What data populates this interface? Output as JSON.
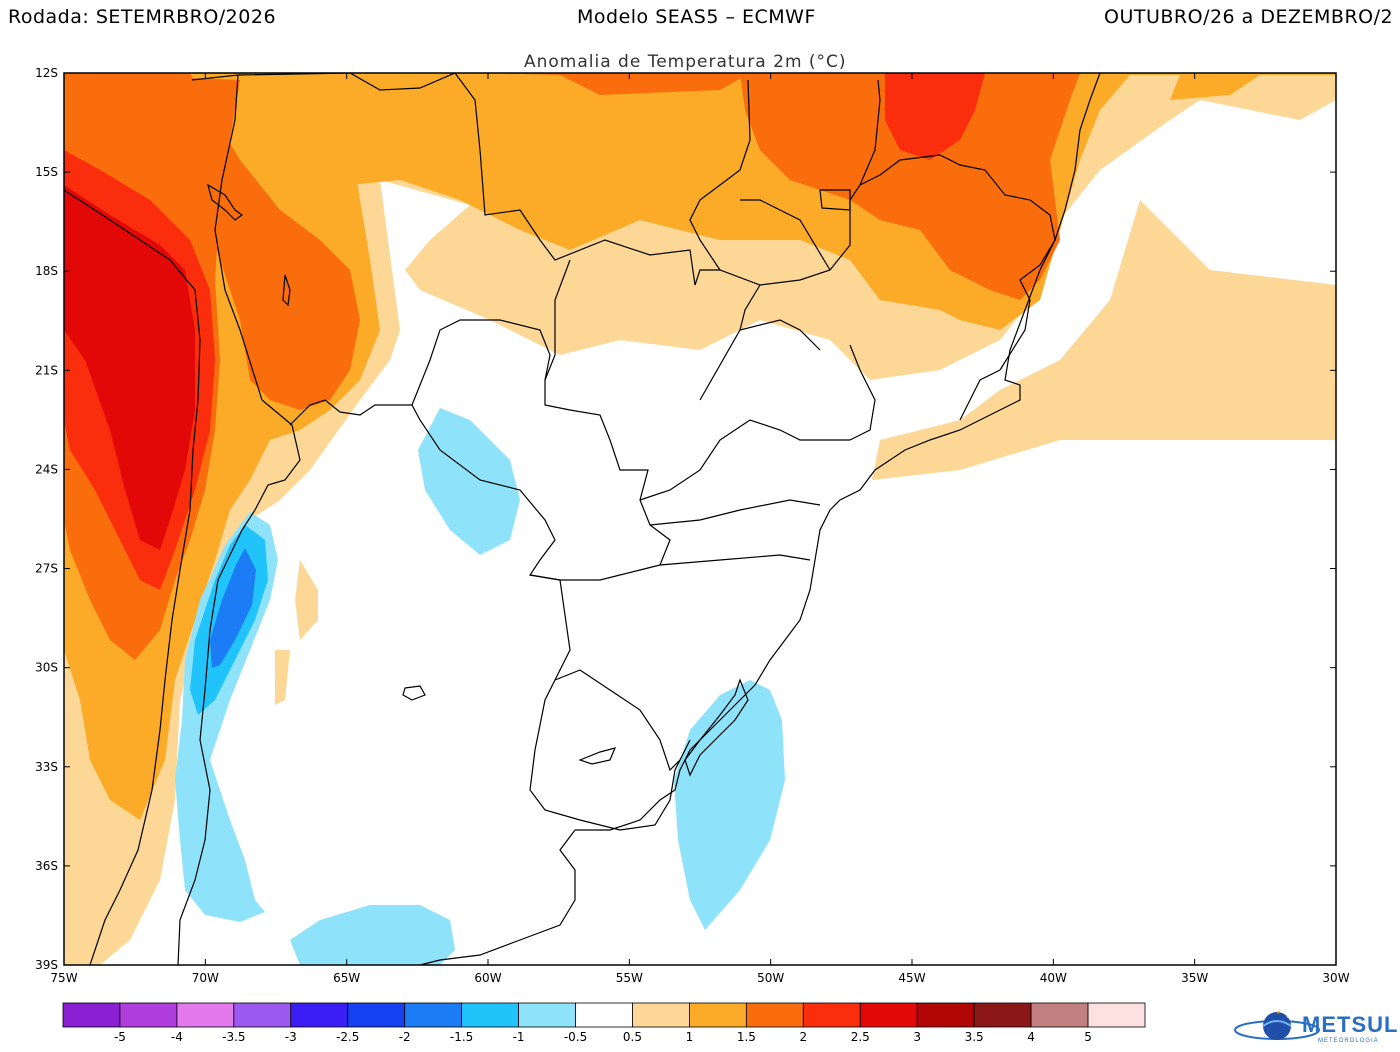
{
  "header": {
    "left": "Rodada: SETEMRBRO/2026",
    "center": "Modelo SEAS5 – ECMWF",
    "right": "OUTUBRO/26 a DEZEMBRO/2",
    "subtitle": "Anomalia de Temperatura 2m (°C)"
  },
  "map": {
    "lat_ticks": [
      "12S",
      "15S",
      "18S",
      "21S",
      "24S",
      "27S",
      "30S",
      "33S",
      "36S",
      "39S"
    ],
    "lon_ticks": [
      "75W",
      "70W",
      "65W",
      "60W",
      "55W",
      "50W",
      "45W",
      "40W",
      "35W",
      "30W"
    ],
    "lat_range": [
      -39,
      -12
    ],
    "lon_range": [
      -75,
      -30
    ]
  },
  "colorbar": {
    "colors": [
      "#8b1fd4",
      "#b03ddd",
      "#e279ec",
      "#9b59f0",
      "#3a1ef5",
      "#1641f2",
      "#1b7cf5",
      "#21c3fb",
      "#8ee3fb",
      "#ffffff",
      "#fcd795",
      "#fbab28",
      "#fa6d0c",
      "#fa2d0c",
      "#e20808",
      "#b00606",
      "#8c1717",
      "#c28080",
      "#fde0e0"
    ],
    "labels": [
      "-5",
      "-4",
      "-3.5",
      "-3",
      "-2.5",
      "-2",
      "-1.5",
      "-1",
      "-0.5",
      "0.5",
      "1",
      "1.5",
      "2",
      "2.5",
      "3",
      "3.5",
      "4",
      "5"
    ]
  },
  "logo": {
    "name": "METSUL",
    "sub": "METEOROLOGIA"
  }
}
